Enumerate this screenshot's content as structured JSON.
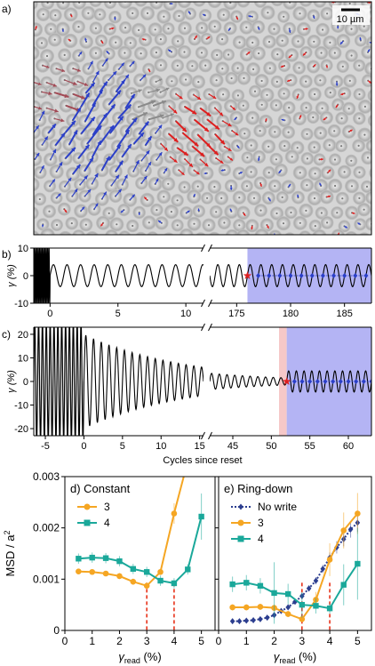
{
  "panel_a": {
    "label": "a)",
    "scalebar": "10 µm",
    "colors": {
      "blue": "#2b3fc8",
      "red": "#dd1f1f",
      "gray": "#8a8a8a"
    }
  },
  "chart_data": [
    {
      "type": "line",
      "panel": "b)",
      "ylabel": "γ (%)",
      "yticks": [
        -10,
        0,
        10
      ],
      "ylim": [
        -10,
        10
      ],
      "segments": [
        {
          "xlim": [
            -1.2,
            11.3
          ],
          "xticks": [
            0,
            5,
            10
          ]
        },
        {
          "xlim": [
            172.5,
            187.5
          ],
          "xticks": [
            175,
            180,
            185
          ]
        }
      ],
      "series": [
        {
          "role": "training",
          "x_range": [
            -1.2,
            0
          ],
          "amplitude": 10,
          "period": 0.1
        },
        {
          "role": "constant",
          "x_range": [
            0,
            11.3
          ],
          "amplitude": 4,
          "period": 1
        },
        {
          "role": "constant",
          "x_range": [
            172.5,
            187.5
          ],
          "amplitude": 4,
          "period": 1
        }
      ],
      "shaded": [
        {
          "from": 176,
          "to": 187.5,
          "color": "#b4b4f4"
        }
      ],
      "star_marker": {
        "x": 176,
        "color": "#dd1f1f"
      },
      "readout_points": {
        "x_start": 177,
        "x_end": 187,
        "color": "#2b3fc8"
      }
    },
    {
      "type": "line",
      "panel": "c)",
      "ylabel": "γ (%)",
      "xlabel": "Cycles since reset",
      "yticks": [
        -20,
        -10,
        0,
        10,
        20
      ],
      "ylim": [
        -23,
        23
      ],
      "segments": [
        {
          "xlim": [
            -6.5,
            15.5
          ],
          "xticks": [
            -5,
            0,
            5,
            10,
            15
          ]
        },
        {
          "xlim": [
            42,
            63
          ],
          "xticks": [
            45,
            50,
            55,
            60
          ]
        }
      ],
      "series": [
        {
          "role": "training",
          "x_range": [
            -6.5,
            0
          ],
          "amplitude": 25,
          "period": 0.5
        },
        {
          "role": "ring-down",
          "x_range": [
            0,
            15.5
          ],
          "amplitude_start": 20,
          "amplitude_end": 6,
          "period": 1
        },
        {
          "role": "ring-down",
          "x_range": [
            42,
            52
          ],
          "amplitude_start": 3.5,
          "amplitude_end": 1.5,
          "period": 1
        },
        {
          "role": "read",
          "x_range": [
            52,
            63
          ],
          "amplitude": 4.5,
          "period": 1
        }
      ],
      "shaded": [
        {
          "from": 51,
          "to": 52,
          "color": "#f6c8c8"
        },
        {
          "from": 52,
          "to": 63,
          "color": "#b4b4f4"
        }
      ],
      "star_marker": {
        "x": 52,
        "color": "#dd1f1f"
      },
      "readout_points": {
        "x_start": 53,
        "x_end": 63,
        "color": "#2b3fc8"
      }
    },
    {
      "type": "line",
      "panel": "d)",
      "title": "d) Constant",
      "xlabel": "γread (%)",
      "ylabel": "MSD / a²",
      "xlim": [
        0,
        5.5
      ],
      "ylim": [
        0,
        0.003
      ],
      "xticks": [
        0,
        1,
        2,
        3,
        4,
        5
      ],
      "yticks": [
        0,
        0.001,
        0.002,
        0.003
      ],
      "ytick_labels": [
        "0",
        "0.001",
        "0.002",
        "0.003"
      ],
      "legend": "top-left",
      "series": [
        {
          "name": "3",
          "color": "#f5a623",
          "marker": "circle",
          "x": [
            0.5,
            1,
            1.5,
            2,
            2.5,
            3,
            3.5,
            4,
            4.5
          ],
          "y": [
            0.00115,
            0.00114,
            0.00111,
            0.00106,
            0.00095,
            0.00087,
            0.00114,
            0.00228,
            0.0033
          ],
          "err": [
            5e-05,
            5e-05,
            5e-05,
            6e-05,
            6e-05,
            7e-05,
            6e-05,
            0.0002,
            0.0003
          ]
        },
        {
          "name": "4",
          "color": "#1aa89a",
          "marker": "square",
          "x": [
            0.5,
            1,
            1.5,
            2,
            2.5,
            3,
            3.5,
            4,
            4.5,
            5
          ],
          "y": [
            0.0014,
            0.00142,
            0.00141,
            0.00135,
            0.0012,
            0.00114,
            0.00097,
            0.00092,
            0.00119,
            0.00222
          ],
          "err": [
            0.0001,
            0.0001,
            0.0001,
            0.0001,
            0.0001,
            0.0001,
            0.0001,
            0.0001,
            0.0001,
            0.00045
          ]
        }
      ],
      "vlines": [
        {
          "x": 3,
          "color": "#e8321a"
        },
        {
          "x": 4,
          "color": "#e8321a"
        }
      ]
    },
    {
      "type": "line",
      "panel": "e)",
      "title": "e) Ring-down",
      "xlabel": "γread (%)",
      "xlim": [
        0,
        5.5
      ],
      "ylim": [
        0,
        0.003
      ],
      "xticks": [
        0,
        1,
        2,
        3,
        4,
        5
      ],
      "yticks": [
        0,
        0.001,
        0.002,
        0.003
      ],
      "legend": "top-left",
      "series": [
        {
          "name": "No write",
          "color": "#2c3e8f",
          "marker": "diamond",
          "dashed": true,
          "x": [
            0.5,
            0.75,
            1,
            1.25,
            1.5,
            1.75,
            2,
            2.25,
            2.5,
            2.75,
            3,
            3.25,
            3.5,
            3.75,
            4,
            4.25,
            4.5,
            4.75,
            5
          ],
          "y": [
            0.00018,
            0.00018,
            0.00019,
            0.0002,
            0.00022,
            0.00025,
            0.0003,
            0.00038,
            0.00045,
            0.00056,
            0.00067,
            0.00082,
            0.00097,
            0.0012,
            0.00142,
            0.00162,
            0.00178,
            0.00197,
            0.0021
          ],
          "err": [
            2e-05,
            2e-05,
            2e-05,
            2e-05,
            2e-05,
            2e-05,
            2e-05,
            3e-05,
            3e-05,
            4e-05,
            5e-05,
            6e-05,
            7e-05,
            8e-05,
            0.0001,
            0.00012,
            0.00014,
            0.00016,
            0.00018
          ]
        },
        {
          "name": "3",
          "color": "#f5a623",
          "marker": "circle",
          "x": [
            0.5,
            1,
            1.5,
            2,
            2.5,
            3,
            3.5,
            4,
            4.5,
            5
          ],
          "y": [
            0.00045,
            0.00045,
            0.00046,
            0.00044,
            0.00032,
            0.00022,
            0.0006,
            0.00138,
            0.00195,
            0.00228
          ],
          "err": [
            6e-05,
            6e-05,
            6e-05,
            6e-05,
            6e-05,
            6e-05,
            0.00015,
            0.00032,
            0.00035,
            0.0004
          ]
        },
        {
          "name": "4",
          "color": "#1aa89a",
          "marker": "square",
          "x": [
            0.5,
            1,
            1.5,
            2,
            2.5,
            3,
            3.5,
            4,
            4.5,
            5
          ],
          "y": [
            0.0009,
            0.00093,
            0.00087,
            0.00073,
            0.00071,
            0.0005,
            0.00048,
            0.00043,
            0.00089,
            0.0013
          ],
          "err": [
            0.00015,
            0.00015,
            0.00015,
            0.0006,
            0.0002,
            0.00025,
            0.00015,
            0.0001,
            0.0004,
            0.0007
          ]
        }
      ],
      "vlines": [
        {
          "x": 3,
          "color": "#e8321a"
        },
        {
          "x": 4,
          "color": "#e8321a"
        }
      ]
    }
  ]
}
